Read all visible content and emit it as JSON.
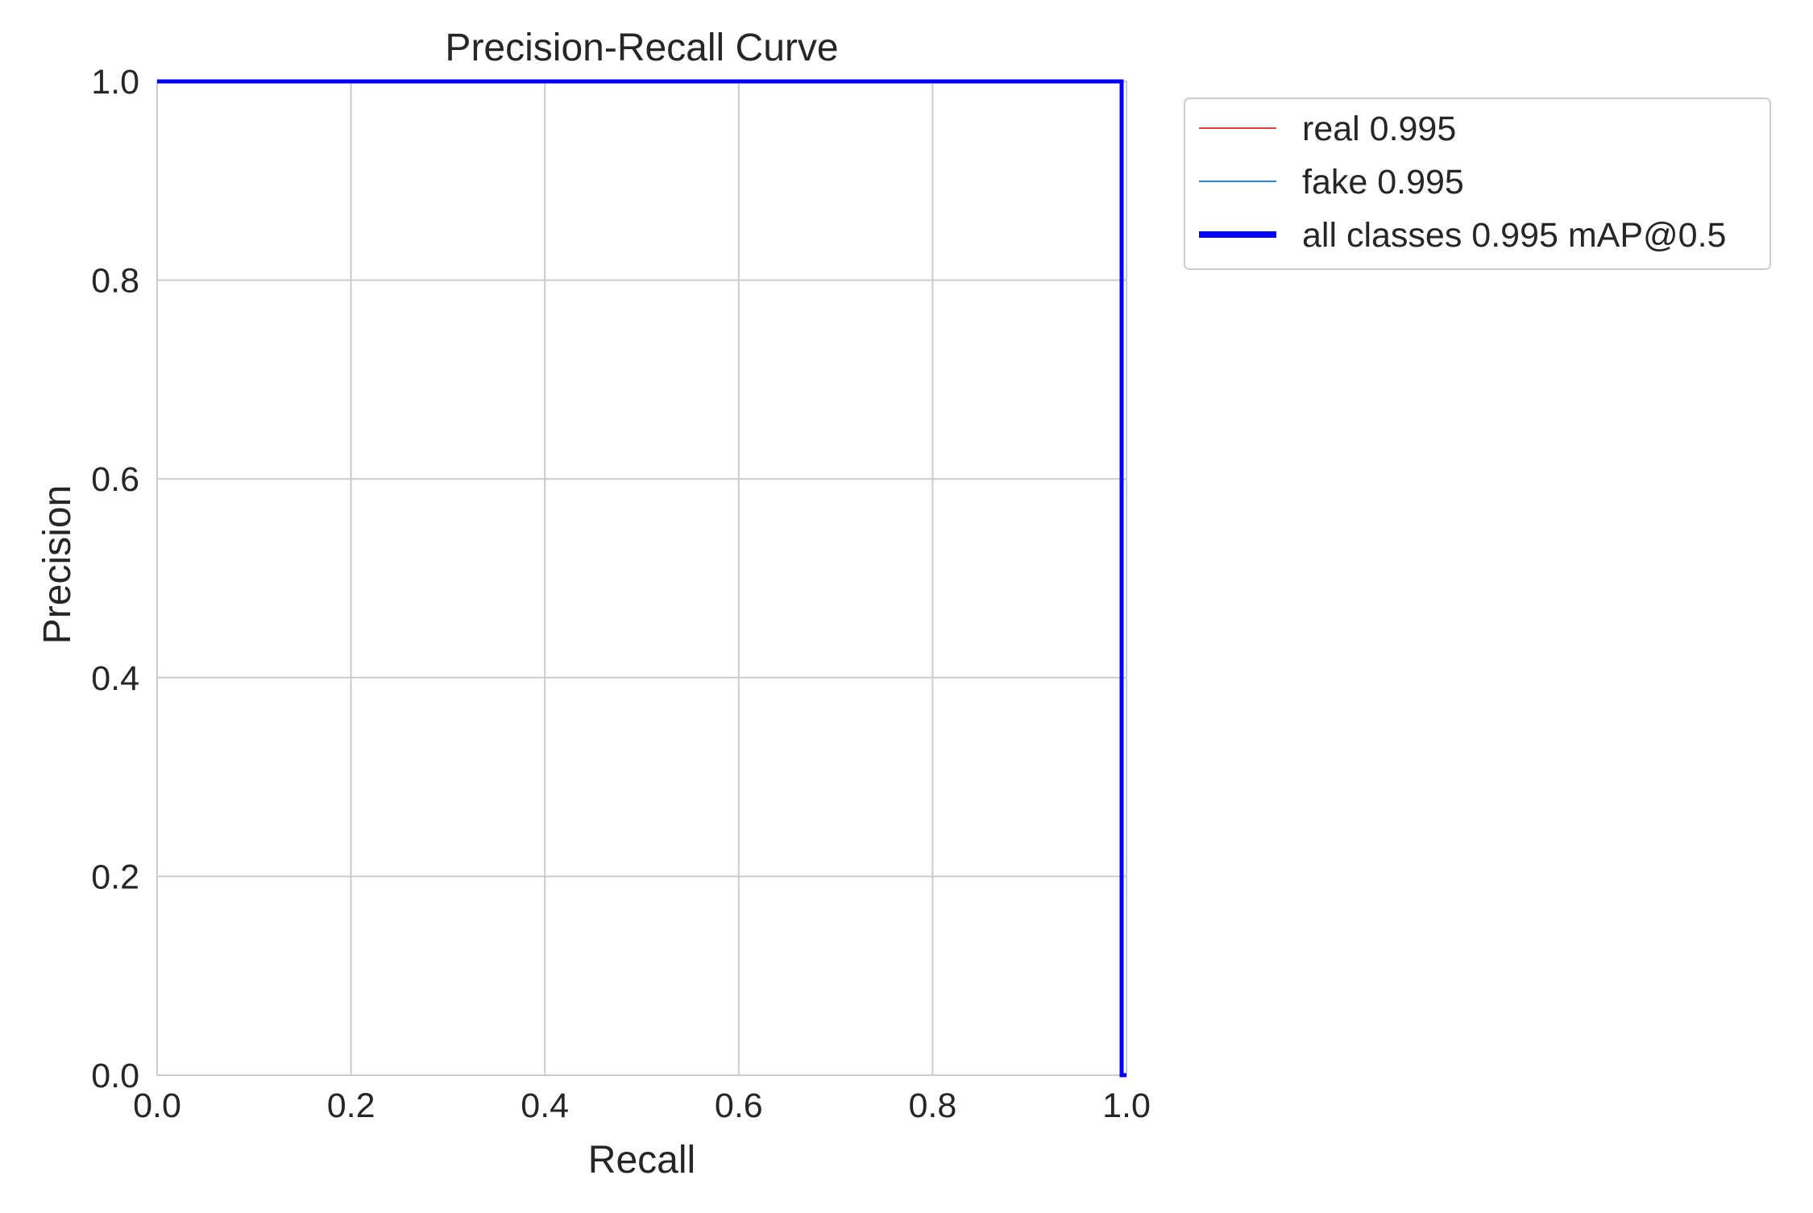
{
  "chart_data": {
    "type": "line",
    "title": "Precision-Recall Curve",
    "xlabel": "Recall",
    "ylabel": "Precision",
    "xlim": [
      0,
      1
    ],
    "ylim": [
      0,
      1
    ],
    "grid": true,
    "legend_position": "outside-top-right",
    "xticks": [
      "0.0",
      "0.2",
      "0.4",
      "0.6",
      "0.8",
      "1.0"
    ],
    "yticks": [
      "0.0",
      "0.2",
      "0.4",
      "0.6",
      "0.8",
      "1.0"
    ],
    "xtick_values": [
      0,
      0.2,
      0.4,
      0.6,
      0.8,
      1.0
    ],
    "ytick_values": [
      0,
      0.2,
      0.4,
      0.6,
      0.8,
      1.0
    ],
    "series": [
      {
        "name": "real 0.995",
        "color": "#e8433a",
        "x": [
          0,
          0.995,
          0.995,
          1.0
        ],
        "y": [
          1.0,
          1.0,
          0.0,
          0.0
        ]
      },
      {
        "name": "fake 0.995",
        "color": "#2f86c8",
        "x": [
          0,
          0.995,
          0.995,
          1.0
        ],
        "y": [
          1.0,
          1.0,
          0.0,
          0.0
        ]
      },
      {
        "name": "all classes 0.995 mAP@0.5",
        "color": "#0000ff",
        "x": [
          0,
          0.995,
          0.995,
          1.0
        ],
        "y": [
          1.0,
          1.0,
          0.0,
          0.0
        ]
      }
    ]
  }
}
